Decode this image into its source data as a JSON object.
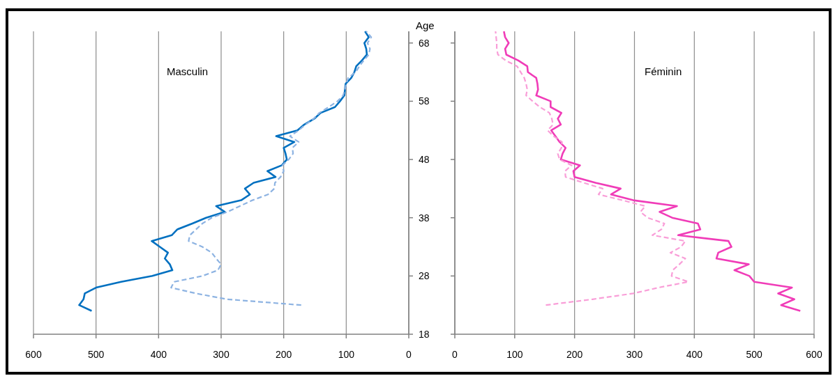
{
  "chart_data": [
    {
      "type": "line",
      "title": "Masculin",
      "ylabel": "Age",
      "orientation": "horizontal",
      "grid": "x",
      "xlim": [
        600,
        0
      ],
      "xticks": [
        600,
        500,
        400,
        300,
        200,
        100,
        0
      ],
      "ylim": [
        18,
        70
      ],
      "yticks": [
        18,
        28,
        38,
        48,
        58,
        68
      ],
      "x": [
        22,
        23,
        24,
        25,
        26,
        27,
        28,
        29,
        30,
        31,
        32,
        33,
        34,
        35,
        36,
        37,
        38,
        39,
        40,
        41,
        42,
        43,
        44,
        45,
        46,
        47,
        48,
        49,
        50,
        51,
        52,
        53,
        54,
        55,
        56,
        57,
        58,
        59,
        60,
        61,
        62,
        63,
        64,
        65,
        66,
        67,
        68,
        69,
        70
      ],
      "series": [
        {
          "color": "#0070c0",
          "line_style": "solid",
          "values": [
            507,
            527,
            520,
            518,
            500,
            460,
            410,
            378,
            382,
            390,
            385,
            398,
            411,
            379,
            370,
            346,
            324,
            294,
            308,
            268,
            254,
            262,
            248,
            213,
            226,
            203,
            195,
            197,
            200,
            183,
            212,
            178,
            167,
            151,
            141,
            118,
            110,
            103,
            102,
            101,
            92,
            87,
            84,
            75,
            67,
            68,
            71,
            64,
            70
          ]
        },
        {
          "color": "#8db3e2",
          "line_style": "dashed",
          "values": [
            null,
            172,
            290,
            340,
            380,
            375,
            330,
            305,
            300,
            308,
            315,
            330,
            352,
            350,
            340,
            330,
            315,
            290,
            270,
            250,
            225,
            215,
            214,
            205,
            200,
            202,
            192,
            185,
            186,
            176,
            190,
            176,
            165,
            152,
            143,
            128,
            114,
            105,
            102,
            100,
            97,
            85,
            79,
            72,
            64,
            62,
            66,
            60,
            68
          ]
        }
      ]
    },
    {
      "type": "line",
      "title": "Féminin",
      "orientation": "horizontal",
      "grid": "x",
      "tick_labels": "x",
      "xlim": [
        0,
        600
      ],
      "xticks": [
        0,
        100,
        200,
        300,
        400,
        500,
        600
      ],
      "ylim": [
        18,
        70
      ],
      "yticks": [
        18,
        28,
        38,
        48,
        58,
        68
      ],
      "x": [
        22,
        23,
        24,
        25,
        26,
        27,
        28,
        29,
        30,
        31,
        32,
        33,
        34,
        35,
        36,
        37,
        38,
        39,
        40,
        41,
        42,
        43,
        44,
        45,
        46,
        47,
        48,
        49,
        50,
        51,
        52,
        53,
        54,
        55,
        56,
        57,
        58,
        59,
        60,
        61,
        62,
        63,
        64,
        65,
        66,
        67,
        68,
        69,
        70
      ],
      "series": [
        {
          "color": "#f03cb8",
          "line_style": "solid",
          "values": [
            577,
            545,
            567,
            540,
            563,
            500,
            492,
            467,
            491,
            437,
            440,
            462,
            457,
            373,
            410,
            406,
            363,
            342,
            371,
            298,
            261,
            277,
            235,
            200,
            198,
            209,
            177,
            180,
            185,
            175,
            168,
            161,
            177,
            172,
            178,
            160,
            160,
            136,
            139,
            138,
            136,
            122,
            121,
            106,
            86,
            84,
            90,
            84,
            82
          ]
        },
        {
          "color": "#f99ed8",
          "line_style": "dashed",
          "values": [
            null,
            152,
            230,
            298,
            340,
            390,
            362,
            364,
            375,
            385,
            360,
            378,
            385,
            330,
            345,
            350,
            322,
            310,
            318,
            280,
            240,
            247,
            215,
            185,
            184,
            195,
            175,
            172,
            178,
            179,
            165,
            155,
            164,
            162,
            158,
            142,
            130,
            119,
            121,
            119,
            116,
            110,
            104,
            85,
            72,
            70,
            70,
            69,
            68
          ]
        }
      ]
    }
  ]
}
